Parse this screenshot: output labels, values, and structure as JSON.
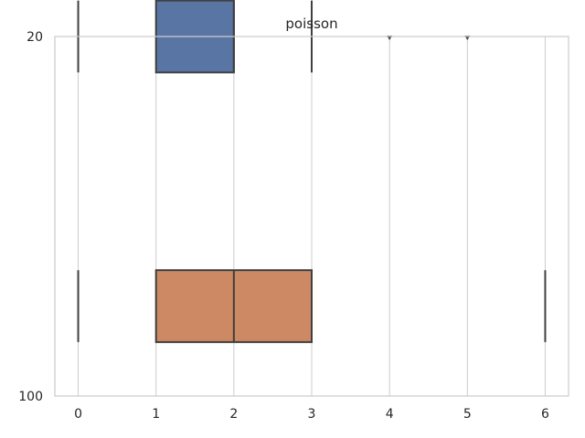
{
  "chart_data": {
    "type": "boxplot",
    "orientation": "horizontal",
    "title": "poisson",
    "xlabel": "",
    "ylabel": "",
    "xlim": [
      -0.3,
      6.3
    ],
    "x_ticks": [
      0,
      1,
      2,
      3,
      4,
      5,
      6
    ],
    "categories": [
      "20",
      "100"
    ],
    "grid": "vertical",
    "series": [
      {
        "category": "20",
        "color": "#5975a4",
        "whisker_low": 0,
        "q1": 1,
        "median": 2,
        "q3": 2,
        "whisker_high": 3,
        "outliers": [
          4,
          5
        ]
      },
      {
        "category": "100",
        "color": "#cc8963",
        "whisker_low": 0,
        "q1": 1,
        "median": 2,
        "q3": 3,
        "whisker_high": 6,
        "outliers": []
      }
    ]
  }
}
